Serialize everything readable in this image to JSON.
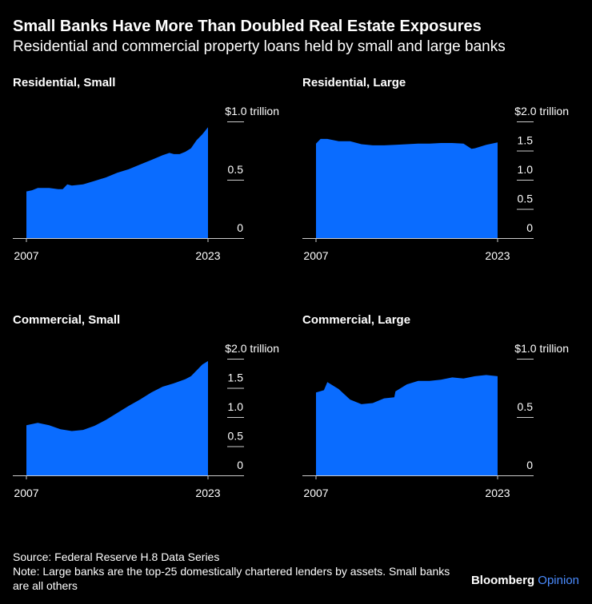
{
  "title": "Small Banks Have More Than Doubled Real Estate Exposures",
  "subtitle": "Residential and commercial property loans held by small and large banks",
  "footer": {
    "source": "Source: Federal Reserve H.8 Data Series",
    "note": "Note: Large banks are the top-25 domestically chartered lenders by assets. Small banks are all others",
    "brand": "Bloomberg",
    "brand_suffix": "Opinion"
  },
  "colors": {
    "fill": "#0a6cff",
    "axis": "#cccccc",
    "background": "#000000"
  },
  "chart_data": [
    {
      "type": "area",
      "title": "Residential, Small",
      "x": [
        2007,
        2007.5,
        2008,
        2009,
        2009.8,
        2010.2,
        2010.6,
        2011,
        2012,
        2013,
        2014,
        2015,
        2016,
        2017,
        2018,
        2019,
        2019.6,
        2020,
        2020.5,
        2021,
        2021.5,
        2022,
        2022.5,
        2023
      ],
      "values": [
        0.4,
        0.41,
        0.43,
        0.43,
        0.42,
        0.42,
        0.46,
        0.45,
        0.46,
        0.49,
        0.52,
        0.56,
        0.59,
        0.63,
        0.67,
        0.71,
        0.73,
        0.72,
        0.72,
        0.74,
        0.77,
        0.84,
        0.89,
        0.95
      ],
      "xticks": [
        "2007",
        "2023"
      ],
      "yticks": [
        "0",
        "0.5",
        "$1.0 trillion"
      ],
      "ylim": [
        0,
        1.0
      ],
      "xlim": [
        2007,
        2023
      ]
    },
    {
      "type": "area",
      "title": "Residential, Large",
      "x": [
        2007,
        2007.4,
        2008,
        2009,
        2010,
        2011,
        2012,
        2013,
        2014,
        2015,
        2016,
        2017,
        2018,
        2019,
        2020,
        2020.7,
        2021,
        2022,
        2023
      ],
      "values": [
        1.62,
        1.7,
        1.7,
        1.66,
        1.66,
        1.61,
        1.59,
        1.59,
        1.6,
        1.61,
        1.62,
        1.62,
        1.63,
        1.63,
        1.62,
        1.53,
        1.54,
        1.6,
        1.64
      ],
      "xticks": [
        "2007",
        "2023"
      ],
      "yticks": [
        "0",
        "0.5",
        "1.0",
        "1.5",
        "$2.0 trillion"
      ],
      "ylim": [
        0,
        2.0
      ],
      "xlim": [
        2007,
        2023
      ]
    },
    {
      "type": "area",
      "title": "Commercial, Small",
      "x": [
        2007,
        2008,
        2009,
        2010,
        2011,
        2012,
        2013,
        2014,
        2015,
        2016,
        2017,
        2018,
        2019,
        2020,
        2021,
        2021.5,
        2022,
        2022.5,
        2023
      ],
      "values": [
        0.86,
        0.9,
        0.86,
        0.79,
        0.76,
        0.78,
        0.85,
        0.95,
        1.07,
        1.19,
        1.3,
        1.42,
        1.52,
        1.58,
        1.65,
        1.7,
        1.8,
        1.9,
        1.96
      ],
      "xticks": [
        "2007",
        "2023"
      ],
      "yticks": [
        "0",
        "0.5",
        "1.0",
        "1.5",
        "$2.0 trillion"
      ],
      "ylim": [
        0,
        2.0
      ],
      "xlim": [
        2007,
        2023
      ]
    },
    {
      "type": "area",
      "title": "Commercial, Large",
      "x": [
        2007,
        2007.7,
        2008,
        2009,
        2010,
        2011,
        2012,
        2013,
        2013.9,
        2014,
        2015,
        2016,
        2017,
        2018,
        2019,
        2020,
        2021,
        2022,
        2023
      ],
      "values": [
        0.71,
        0.73,
        0.8,
        0.74,
        0.65,
        0.61,
        0.62,
        0.66,
        0.67,
        0.72,
        0.78,
        0.81,
        0.81,
        0.82,
        0.84,
        0.83,
        0.85,
        0.86,
        0.85
      ],
      "xticks": [
        "2007",
        "2023"
      ],
      "yticks": [
        "0",
        "0.5",
        "$1.0 trillion"
      ],
      "ylim": [
        0,
        1.0
      ],
      "xlim": [
        2007,
        2023
      ]
    }
  ]
}
